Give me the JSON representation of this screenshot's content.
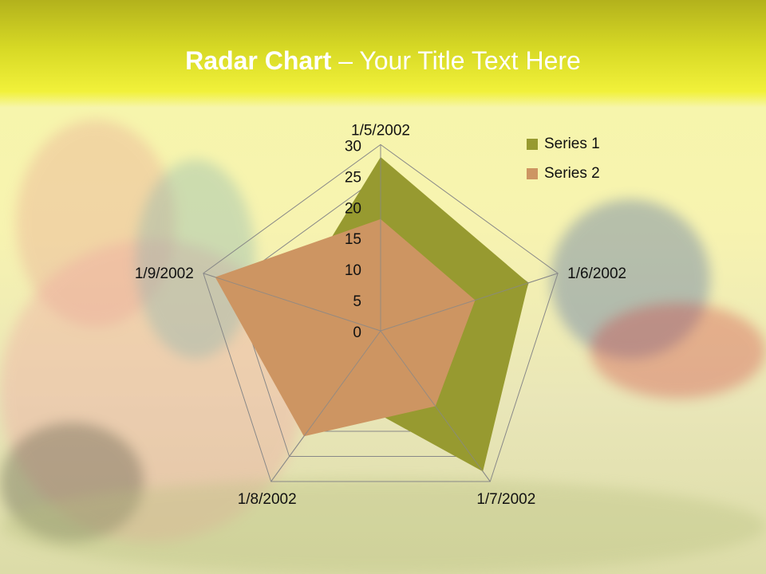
{
  "slide": {
    "title_bold": "Radar Chart",
    "title_rest": " – Your Title Text Here"
  },
  "chart_data": {
    "type": "radar",
    "categories": [
      "1/5/2002",
      "1/6/2002",
      "1/7/2002",
      "1/8/2002",
      "1/9/2002"
    ],
    "series": [
      {
        "name": "Series 1",
        "values": [
          28,
          25,
          28,
          12,
          15
        ],
        "color": "#979a30"
      },
      {
        "name": "Series 2",
        "values": [
          18,
          16,
          15,
          21,
          28
        ],
        "color": "#cd9562"
      }
    ],
    "radial_ticks": [
      "0",
      "5",
      "10",
      "15",
      "20",
      "25",
      "30"
    ],
    "rlim": [
      0,
      30
    ],
    "grid": true,
    "legend_position": "top-right",
    "gridline_color": "#888888"
  }
}
